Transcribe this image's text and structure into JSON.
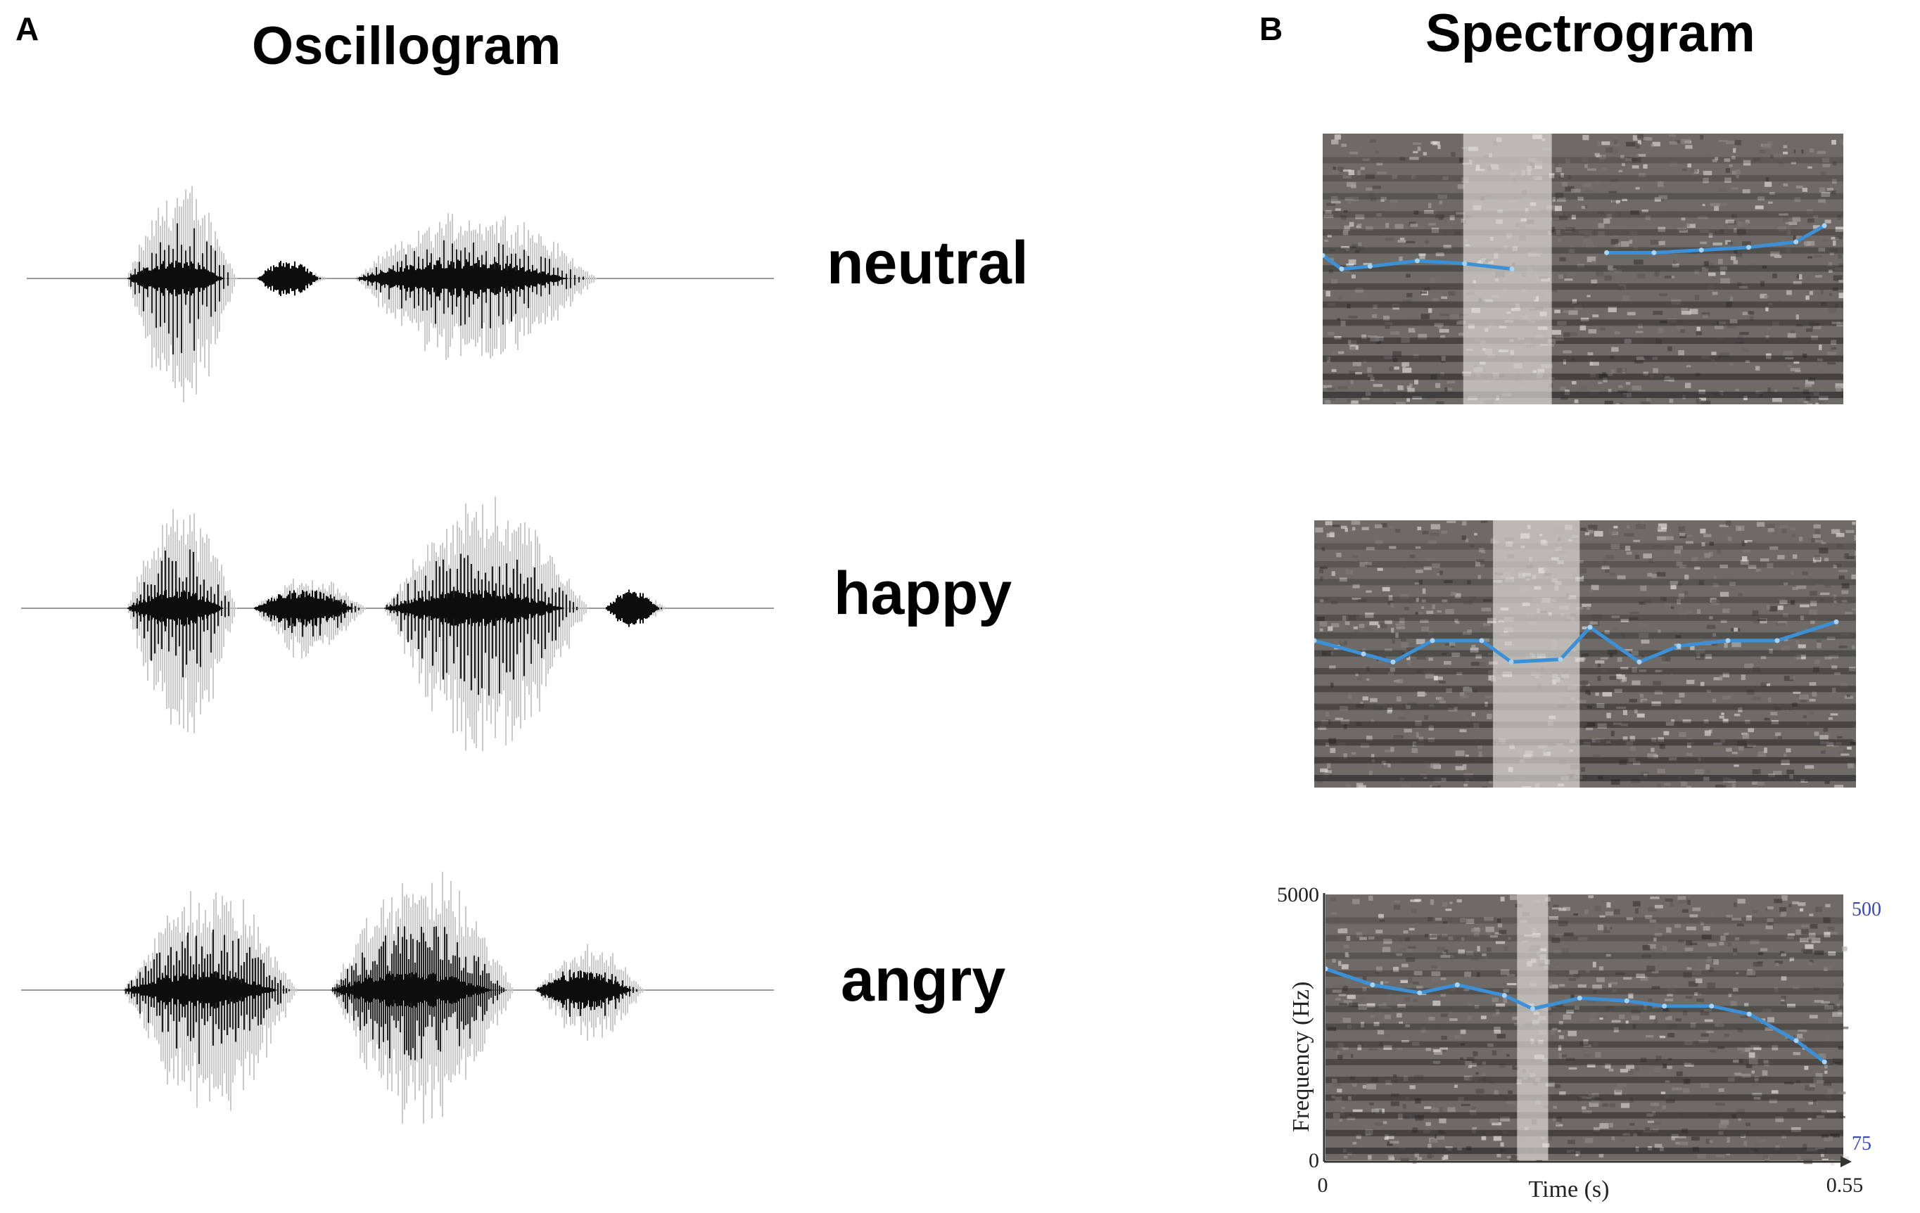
{
  "panel_a": {
    "letter": "A",
    "title": "Oscillogram"
  },
  "panel_b": {
    "letter": "B",
    "title": "Spectrogram"
  },
  "emotions": [
    "neutral",
    "happy",
    "angry"
  ],
  "spectrogram_axes": {
    "y_label": "Frequency (Hz)",
    "y_top": "5000",
    "y_bottom": "0",
    "x_label": "Time (s)",
    "x_start": "0",
    "x_end": "0.55",
    "pitch_top": "500",
    "pitch_bottom": "75"
  },
  "colors": {
    "pitch_line": "#3d8fd6",
    "pitch_axis_text": "#3b4aa8",
    "waveform_dark": "#111111",
    "waveform_light": "#c8c8c8"
  },
  "chart_data": [
    {
      "type": "line",
      "name": "neutral-pitch-contour",
      "x": [
        0.0,
        0.02,
        0.05,
        0.1,
        0.15,
        0.2,
        0.25,
        0.3,
        0.35,
        0.4,
        0.45,
        0.5,
        0.53
      ],
      "y": [
        0.55,
        0.5,
        0.51,
        0.53,
        0.52,
        0.5,
        null,
        0.56,
        0.56,
        0.57,
        0.58,
        0.6,
        0.66
      ]
    },
    {
      "type": "line",
      "name": "happy-pitch-contour",
      "x": [
        0.0,
        0.05,
        0.08,
        0.12,
        0.17,
        0.2,
        0.25,
        0.28,
        0.33,
        0.37,
        0.42,
        0.47,
        0.53
      ],
      "y": [
        0.55,
        0.5,
        0.47,
        0.55,
        0.55,
        0.47,
        0.48,
        0.6,
        0.47,
        0.53,
        0.55,
        0.55,
        0.62
      ]
    },
    {
      "type": "line",
      "name": "angry-pitch-contour",
      "x": [
        0.0,
        0.05,
        0.1,
        0.14,
        0.19,
        0.22,
        0.27,
        0.32,
        0.36,
        0.41,
        0.45,
        0.5,
        0.53
      ],
      "y": [
        0.72,
        0.66,
        0.63,
        0.66,
        0.62,
        0.57,
        0.61,
        0.6,
        0.58,
        0.58,
        0.55,
        0.45,
        0.37
      ]
    }
  ]
}
